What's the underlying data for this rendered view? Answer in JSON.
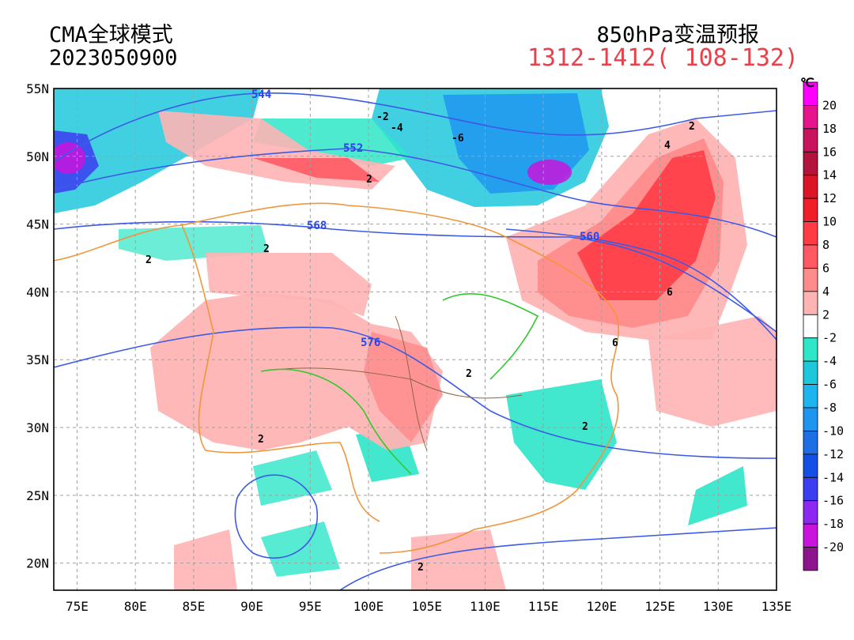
{
  "header": {
    "model": "CMA全球模式",
    "init_time": "2023050900",
    "product": "850hPa变温预报",
    "valid_range": "1312-1412( 108-132)"
  },
  "map": {
    "lat_labels": [
      "55N",
      "50N",
      "45N",
      "40N",
      "35N",
      "30N",
      "25N",
      "20N"
    ],
    "lon_labels": [
      "75E",
      "80E",
      "85E",
      "90E",
      "95E",
      "100E",
      "105E",
      "110E",
      "115E",
      "120E",
      "125E",
      "130E",
      "135E"
    ],
    "height_contour_labels": [
      "544",
      "552",
      "568",
      "560",
      "576"
    ],
    "temp_change_labels": [
      "-2",
      "-4",
      "-6",
      "2",
      "2",
      "2",
      "2",
      "4",
      "6",
      "6",
      "2",
      "2",
      "2",
      "2"
    ]
  },
  "colorbar": {
    "unit": "℃",
    "labels": [
      "20",
      "18",
      "16",
      "14",
      "12",
      "10",
      "8",
      "6",
      "4",
      "2",
      "-2",
      "-4",
      "-6",
      "-8",
      "-10",
      "-12",
      "-14",
      "-16",
      "-18",
      "-20"
    ],
    "colors": [
      "#ff00ff",
      "#e6148c",
      "#c8145f",
      "#b4143c",
      "#dc1428",
      "#f01e28",
      "#ff3c46",
      "#ff5a64",
      "#ff8c8c",
      "#ffb4b4",
      "#ffffff",
      "#2ee6c8",
      "#1ec8dc",
      "#1eb4f0",
      "#1e96f0",
      "#1e6ee6",
      "#1450e6",
      "#3c3cf0",
      "#8c28f0",
      "#c814dc",
      "#8c148c"
    ],
    "legend_note": "white band between 2 and -2"
  }
}
